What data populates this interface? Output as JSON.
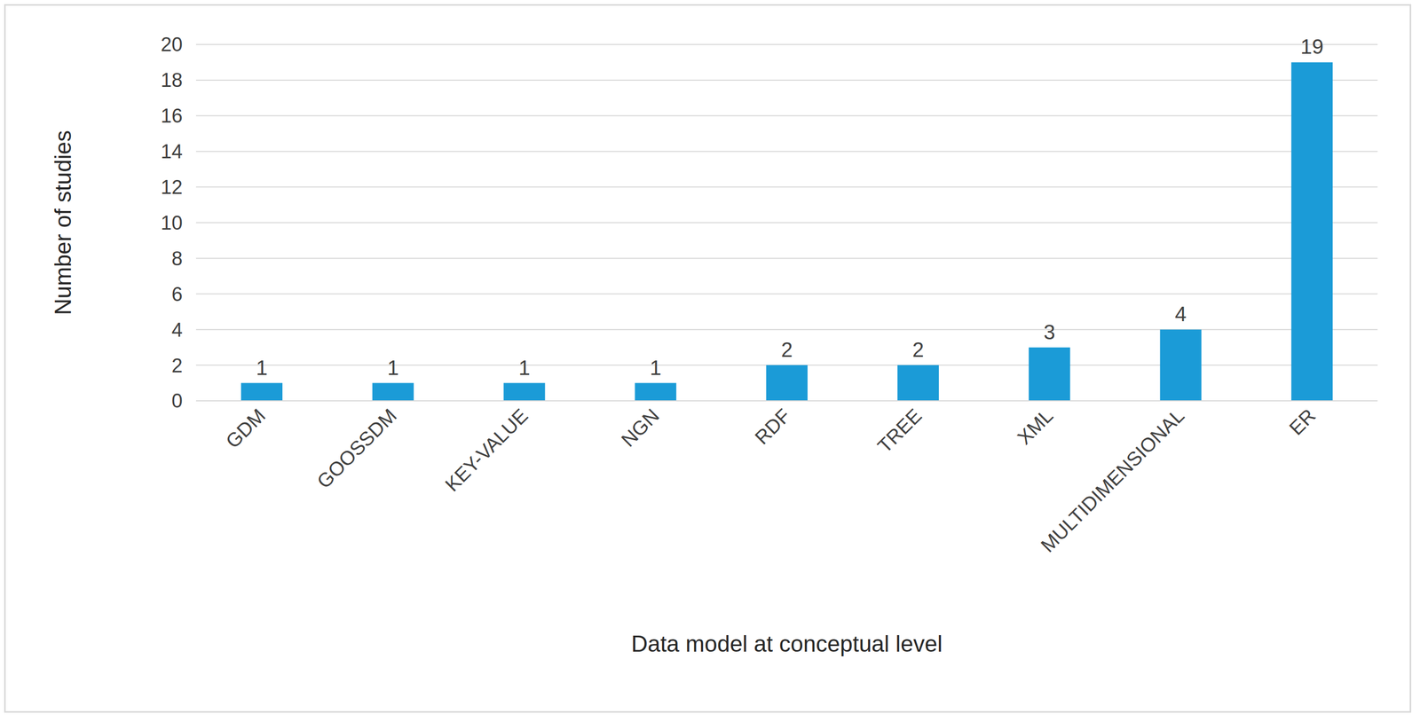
{
  "chart_data": {
    "type": "bar",
    "categories": [
      "GDM",
      "GOOSSDM",
      "KEY-VALUE",
      "NGN",
      "RDF",
      "TREE",
      "XML",
      "MULTIDIMENSIONAL",
      "ER"
    ],
    "values": [
      1,
      1,
      1,
      1,
      2,
      2,
      3,
      4,
      19
    ],
    "color": "#1b9bd7",
    "ylim": [
      0,
      20
    ],
    "yticks": [
      0,
      2,
      4,
      6,
      8,
      10,
      12,
      14,
      16,
      18,
      20
    ],
    "grid": true,
    "data_labels": true,
    "x_label": "Data model at conceptual level",
    "y_label": "Number of studies"
  }
}
